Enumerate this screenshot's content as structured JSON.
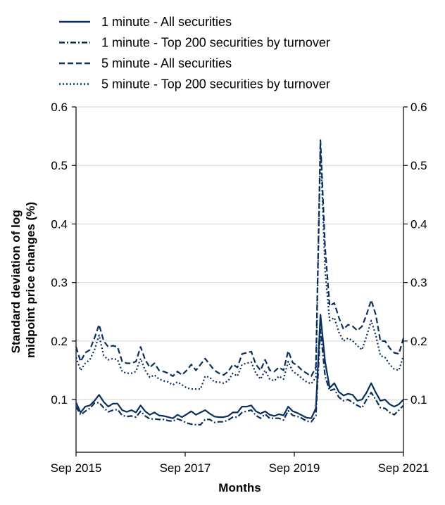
{
  "chart_data": {
    "type": "line",
    "xlabel": "Months",
    "ylabel": [
      "Standard deviation of log",
      "midpoint price changes (%)"
    ],
    "x_ticks": [
      "Sep 2015",
      "Sep 2017",
      "Sep 2019",
      "Sep 2021"
    ],
    "x_range": [
      "2015-09",
      "2021-09"
    ],
    "y_ticks": [
      "0.1",
      "0.2",
      "0.3",
      "0.4",
      "0.5",
      "0.6"
    ],
    "ylim": [
      0.01,
      0.6
    ],
    "grid": "horizontal",
    "legend_position": "top-left, above plot",
    "colors": {
      "series": "#0a2f5c",
      "grid": "#d4d4d4",
      "axis": "#000000"
    },
    "x_start": "2015-09",
    "series": [
      {
        "name": "1 minute - All securities",
        "style": "solid",
        "values": [
          0.095,
          0.078,
          0.088,
          0.09,
          0.098,
          0.108,
          0.096,
          0.088,
          0.093,
          0.093,
          0.082,
          0.079,
          0.082,
          0.078,
          0.09,
          0.08,
          0.074,
          0.078,
          0.073,
          0.072,
          0.07,
          0.068,
          0.074,
          0.07,
          0.075,
          0.08,
          0.074,
          0.078,
          0.082,
          0.076,
          0.071,
          0.07,
          0.07,
          0.072,
          0.078,
          0.078,
          0.088,
          0.088,
          0.09,
          0.08,
          0.076,
          0.08,
          0.074,
          0.072,
          0.075,
          0.073,
          0.088,
          0.08,
          0.077,
          0.073,
          0.069,
          0.068,
          0.085,
          0.245,
          0.165,
          0.12,
          0.128,
          0.113,
          0.107,
          0.11,
          0.108,
          0.098,
          0.1,
          0.112,
          0.128,
          0.112,
          0.098,
          0.1,
          0.092,
          0.088,
          0.092,
          0.1
        ]
      },
      {
        "name": "1 minute - Top 200 securities by turnover",
        "style": "dashdot",
        "values": [
          0.088,
          0.074,
          0.08,
          0.085,
          0.094,
          0.095,
          0.086,
          0.079,
          0.082,
          0.083,
          0.073,
          0.071,
          0.072,
          0.07,
          0.08,
          0.072,
          0.067,
          0.067,
          0.066,
          0.066,
          0.064,
          0.063,
          0.067,
          0.064,
          0.06,
          0.058,
          0.057,
          0.057,
          0.066,
          0.066,
          0.061,
          0.062,
          0.062,
          0.065,
          0.07,
          0.07,
          0.078,
          0.08,
          0.082,
          0.073,
          0.068,
          0.075,
          0.068,
          0.068,
          0.068,
          0.065,
          0.081,
          0.073,
          0.071,
          0.068,
          0.063,
          0.062,
          0.072,
          0.22,
          0.14,
          0.115,
          0.118,
          0.104,
          0.098,
          0.1,
          0.095,
          0.09,
          0.086,
          0.1,
          0.112,
          0.1,
          0.086,
          0.085,
          0.078,
          0.074,
          0.082,
          0.09
        ]
      },
      {
        "name": "5 minute - All securities",
        "style": "dashed",
        "values": [
          0.19,
          0.165,
          0.18,
          0.185,
          0.205,
          0.228,
          0.2,
          0.19,
          0.192,
          0.19,
          0.165,
          0.162,
          0.162,
          0.165,
          0.19,
          0.168,
          0.155,
          0.162,
          0.15,
          0.148,
          0.145,
          0.14,
          0.148,
          0.142,
          0.15,
          0.16,
          0.15,
          0.16,
          0.17,
          0.16,
          0.15,
          0.145,
          0.142,
          0.148,
          0.16,
          0.155,
          0.178,
          0.18,
          0.182,
          0.16,
          0.15,
          0.168,
          0.15,
          0.148,
          0.155,
          0.15,
          0.183,
          0.163,
          0.158,
          0.15,
          0.145,
          0.14,
          0.155,
          0.543,
          0.36,
          0.26,
          0.265,
          0.24,
          0.22,
          0.228,
          0.225,
          0.218,
          0.225,
          0.245,
          0.27,
          0.245,
          0.2,
          0.2,
          0.188,
          0.18,
          0.178,
          0.205
        ]
      },
      {
        "name": "5 minute - Top 200 securities by turnover",
        "style": "dotted",
        "values": [
          0.172,
          0.15,
          0.162,
          0.168,
          0.185,
          0.21,
          0.175,
          0.168,
          0.17,
          0.168,
          0.148,
          0.145,
          0.145,
          0.148,
          0.17,
          0.15,
          0.138,
          0.142,
          0.135,
          0.132,
          0.13,
          0.125,
          0.13,
          0.125,
          0.12,
          0.118,
          0.118,
          0.118,
          0.14,
          0.138,
          0.13,
          0.13,
          0.128,
          0.132,
          0.145,
          0.14,
          0.16,
          0.162,
          0.164,
          0.145,
          0.135,
          0.15,
          0.135,
          0.132,
          0.14,
          0.135,
          0.165,
          0.148,
          0.143,
          0.136,
          0.13,
          0.127,
          0.138,
          0.535,
          0.32,
          0.235,
          0.24,
          0.215,
          0.2,
          0.205,
          0.2,
          0.192,
          0.185,
          0.208,
          0.235,
          0.21,
          0.175,
          0.172,
          0.16,
          0.152,
          0.15,
          0.175
        ]
      }
    ]
  }
}
